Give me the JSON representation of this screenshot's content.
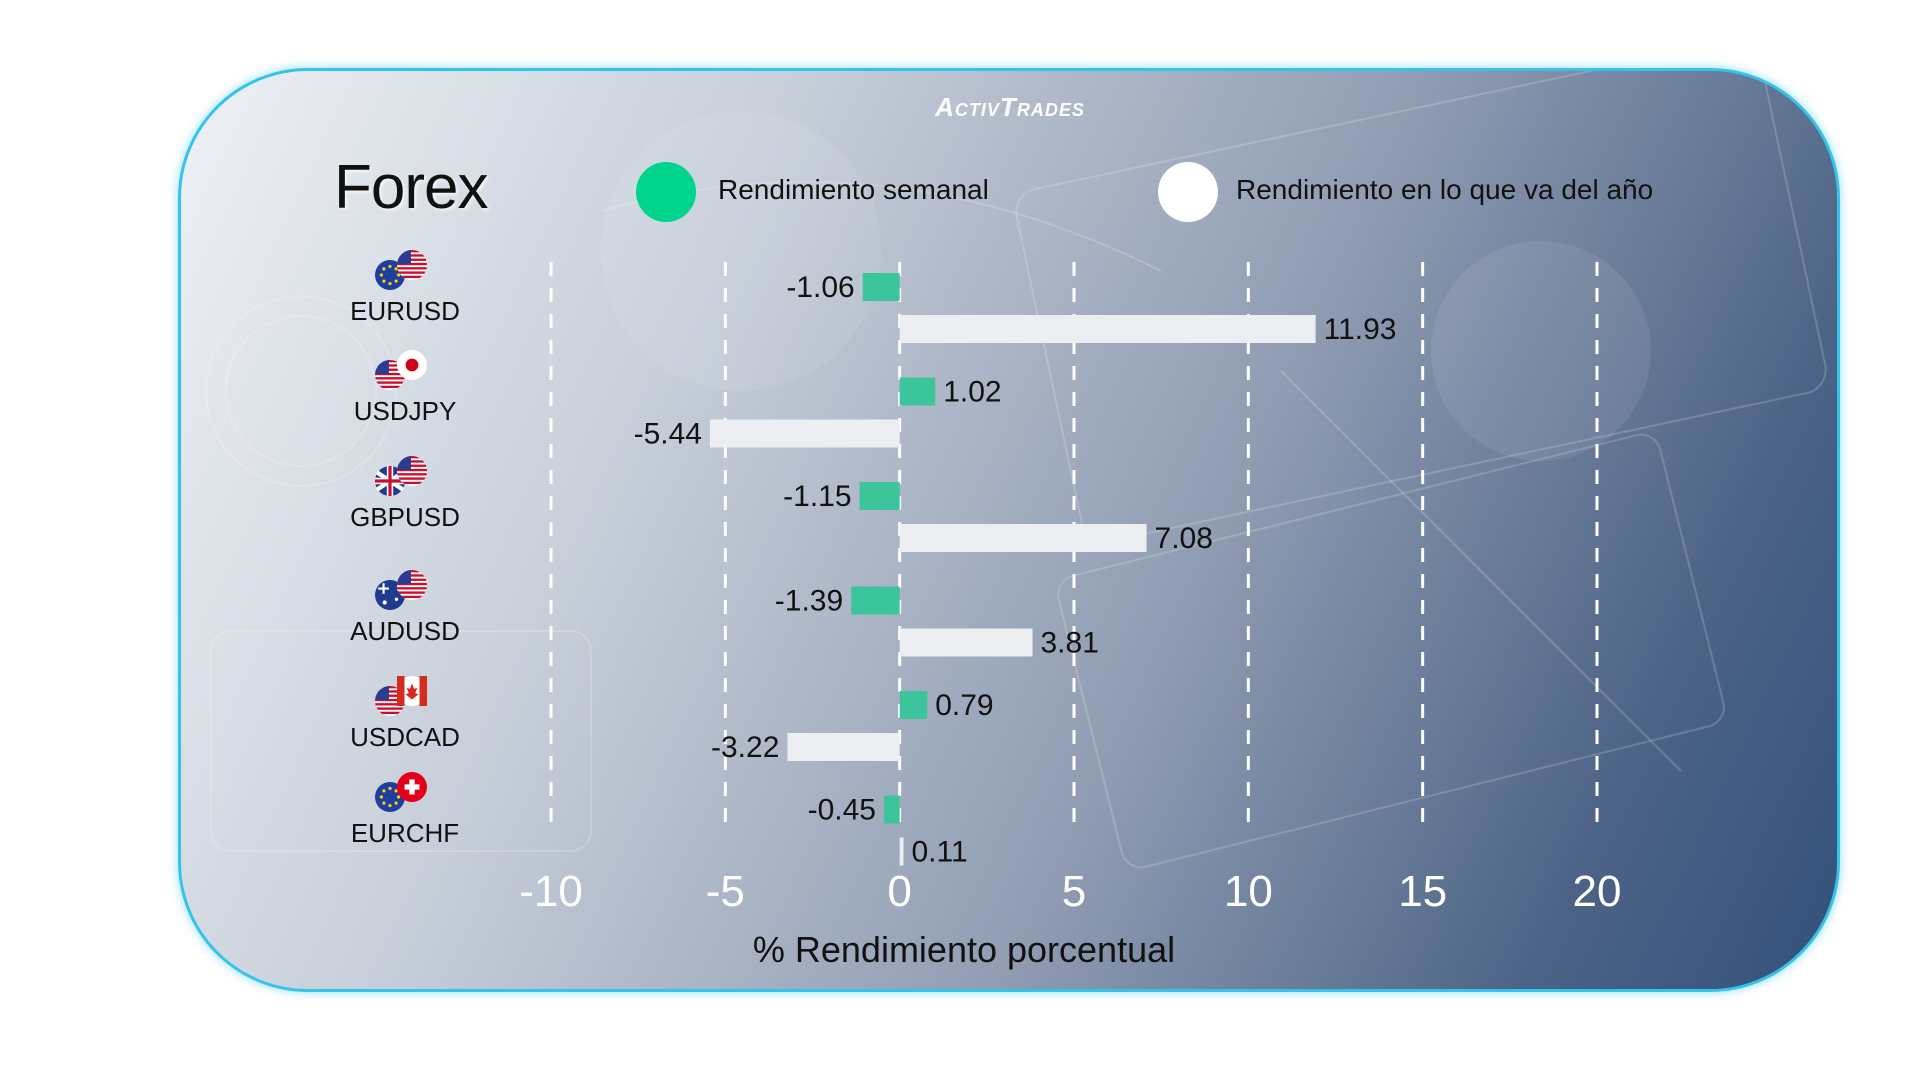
{
  "brand": "ActivTrades",
  "title": "Forex",
  "legend": {
    "weekly": "Rendimiento semanal",
    "ytd": "Rendimiento en lo que va del año"
  },
  "colors": {
    "weekly": "#3cc59b",
    "ytd": "#eceef2",
    "border": "#35c3ea",
    "tick": "#ffffff"
  },
  "chart_data": {
    "type": "bar",
    "orientation": "horizontal",
    "categories": [
      "EURUSD",
      "USDJPY",
      "GBPUSD",
      "AUDUSD",
      "USDCAD",
      "EURCHF"
    ],
    "series": [
      {
        "name": "Rendimiento semanal",
        "values": [
          -1.06,
          1.02,
          -1.15,
          -1.39,
          0.79,
          -0.45
        ]
      },
      {
        "name": "Rendimiento en lo que va del año",
        "values": [
          11.93,
          -5.44,
          7.08,
          3.81,
          -3.22,
          0.11
        ]
      }
    ],
    "value_labels": {
      "weekly": [
        "-1.06",
        "1.02",
        "-1.15",
        "-1.39",
        "0.79",
        "-0.45"
      ],
      "ytd": [
        "11.93",
        "-5.44",
        "7.08",
        "3.81",
        "-3.22",
        "0.11"
      ]
    },
    "xticks": [
      "-10",
      "-5",
      "0",
      "5",
      "10",
      "15",
      "20"
    ],
    "xlim": [
      -10,
      20
    ],
    "xlabel": "% Rendimiento porcentual",
    "grid": "vertical dashed",
    "legend_position": "top"
  },
  "pairs": [
    {
      "label": "EURUSD",
      "flags": [
        "eu-flag-icon",
        "us-flag-icon"
      ]
    },
    {
      "label": "USDJPY",
      "flags": [
        "us-flag-icon",
        "jp-flag-icon"
      ]
    },
    {
      "label": "GBPUSD",
      "flags": [
        "uk-flag-icon",
        "us-flag-icon"
      ]
    },
    {
      "label": "AUDUSD",
      "flags": [
        "au-flag-icon",
        "us-flag-icon"
      ]
    },
    {
      "label": "USDCAD",
      "flags": [
        "us-flag-icon",
        "ca-flag-icon"
      ]
    },
    {
      "label": "EURCHF",
      "flags": [
        "eu-flag-icon",
        "ch-flag-icon"
      ]
    }
  ]
}
